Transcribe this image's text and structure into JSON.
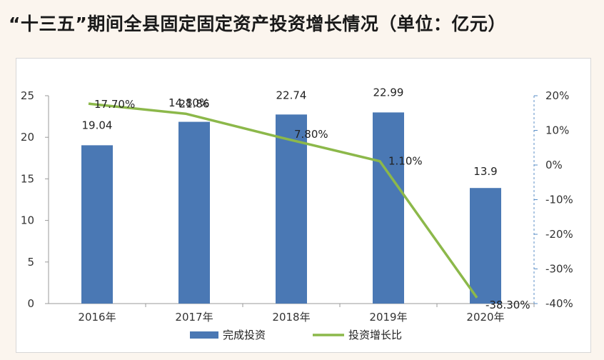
{
  "title": "“十三五”期间全县固定固定资产投资增长情况（单位：亿元）",
  "chart_data": {
    "type": "bar",
    "categories": [
      "2016年",
      "2017年",
      "2018年",
      "2019年",
      "2020年"
    ],
    "series": [
      {
        "name": "完成投资",
        "type": "bar",
        "axis": "left",
        "values": [
          19.04,
          21.86,
          22.74,
          22.99,
          13.9
        ],
        "labels": [
          "19.04",
          "21.86",
          "22.74",
          "22.99",
          "13.9"
        ],
        "color": "#4a78b4"
      },
      {
        "name": "投资增长比",
        "type": "line",
        "axis": "right",
        "values": [
          17.7,
          14.8,
          7.8,
          1.1,
          -38.3
        ],
        "labels": [
          "17.70%",
          "14.80%",
          "7.80%",
          "1.10%",
          "-38.30%"
        ],
        "color": "#8cb84a"
      }
    ],
    "y_left": {
      "min": 0,
      "max": 25,
      "ticks": [
        "0",
        "5",
        "10",
        "15",
        "20",
        "25"
      ]
    },
    "y_right": {
      "min": -40,
      "max": 20,
      "ticks": [
        "-40%",
        "-30%",
        "-20%",
        "-10%",
        "0%",
        "10%",
        "20%"
      ]
    },
    "legend": "bottom",
    "grid": false
  }
}
